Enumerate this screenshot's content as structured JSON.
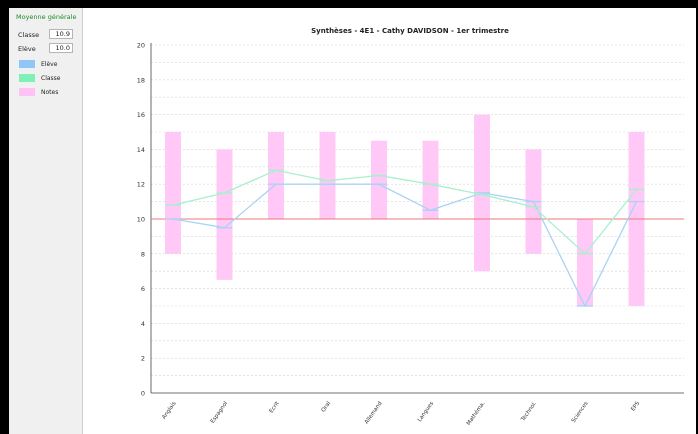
{
  "sidebar": {
    "group_title": "Moyenne générale",
    "classe_label": "Classe",
    "classe_value": "10.9",
    "eleve_label": "Elève",
    "eleve_value": "10.0",
    "legend": [
      {
        "label": "Elève",
        "color": "#8ec7f5"
      },
      {
        "label": "Classe",
        "color": "#7ff0b8"
      },
      {
        "label": "Notes",
        "color": "#ffc2f5"
      }
    ]
  },
  "chart_data": {
    "type": "line",
    "title": "Synthèses - 4E1 - Cathy DAVIDSON - 1er trimestre",
    "categories": [
      "Anglais",
      "Espagnol",
      "Ecrit",
      "Oral",
      "Allemand",
      "Langues",
      "Mathéma.",
      "Technol.",
      "Sciences",
      "EPS"
    ],
    "ylim": [
      0,
      20
    ],
    "yticks": [
      "0",
      "2",
      "4",
      "6",
      "8",
      "10",
      "12",
      "14",
      "16",
      "18",
      "20"
    ],
    "grid": true,
    "reference_line": {
      "value": 10,
      "color": "#e87878"
    },
    "series": [
      {
        "name": "Elève",
        "color": "#a9d3f5",
        "values": [
          10,
          9.5,
          12,
          12,
          12,
          10.5,
          11.5,
          11,
          5,
          11
        ]
      },
      {
        "name": "Classe",
        "color": "#a8f0cc",
        "values": [
          10.8,
          11.5,
          12.8,
          12.2,
          12.5,
          12,
          11.4,
          10.7,
          8,
          11.7
        ]
      }
    ],
    "ranges": {
      "name": "Notes",
      "color": "#ffc8f6",
      "low": [
        8,
        6.5,
        10,
        10,
        10,
        10,
        7,
        8,
        5,
        5
      ],
      "high": [
        15,
        14,
        15,
        15,
        14.5,
        14.5,
        16,
        14,
        10,
        15
      ]
    }
  }
}
